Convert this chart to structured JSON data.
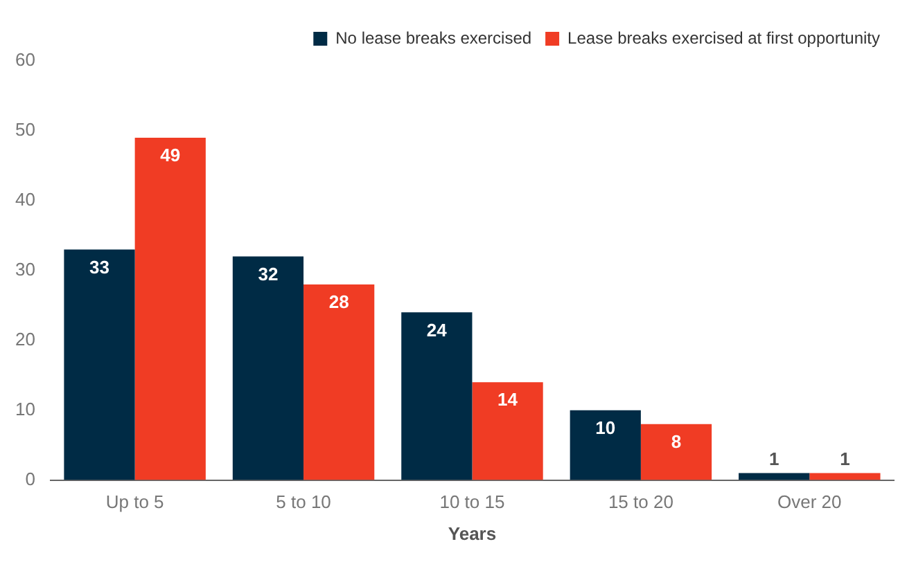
{
  "chart_data": {
    "type": "bar",
    "xlabel": "Years",
    "categories": [
      "Up to 5",
      "5 to 10",
      "10 to 15",
      "15 to 20",
      "Over 20"
    ],
    "series": [
      {
        "name": "No lease breaks exercised",
        "color": "#002b45",
        "values": [
          33,
          32,
          24,
          10,
          1
        ]
      },
      {
        "name": "Lease breaks exercised at first opportunity",
        "color": "#f03c24",
        "values": [
          49,
          28,
          14,
          8,
          1
        ]
      }
    ],
    "ylim": [
      0,
      60
    ],
    "yticks": [
      0,
      10,
      20,
      30,
      40,
      50,
      60
    ],
    "grid": false,
    "legend": "top right",
    "data_labels": true
  }
}
